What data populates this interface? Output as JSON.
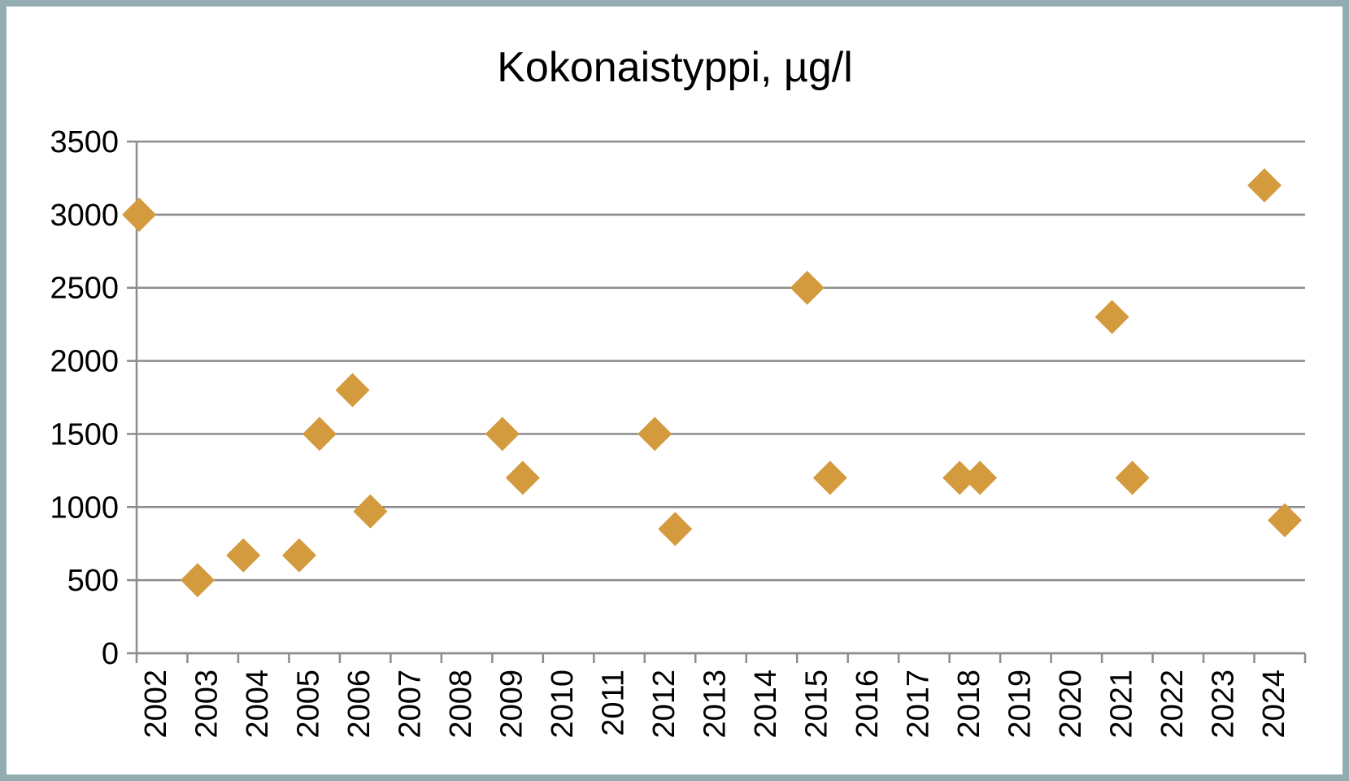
{
  "chart_data": {
    "type": "scatter",
    "title": "Kokonaistyppi, µg/l",
    "xlabel": "",
    "ylabel": "",
    "x_ticks": [
      "2002",
      "2003",
      "2004",
      "2005",
      "2006",
      "2007",
      "2008",
      "2009",
      "2010",
      "2011",
      "2012",
      "2013",
      "2014",
      "2015",
      "2016",
      "2017",
      "2018",
      "2019",
      "2020",
      "2021",
      "2022",
      "2023",
      "2024"
    ],
    "y_ticks": [
      0,
      500,
      1000,
      1500,
      2000,
      2500,
      3000,
      3500
    ],
    "xlim": [
      2002,
      2025
    ],
    "ylim": [
      0,
      3500
    ],
    "grid": "horizontal",
    "legend": "none",
    "marker": "diamond",
    "marker_color": "#d39a3e",
    "gridline_color": "#8c8c8c",
    "frame_color": "#93adb3",
    "points": [
      {
        "x": 2002.05,
        "y": 3000
      },
      {
        "x": 2003.2,
        "y": 500
      },
      {
        "x": 2004.1,
        "y": 670
      },
      {
        "x": 2005.2,
        "y": 670
      },
      {
        "x": 2005.6,
        "y": 1500
      },
      {
        "x": 2006.25,
        "y": 1800
      },
      {
        "x": 2006.6,
        "y": 970
      },
      {
        "x": 2009.2,
        "y": 1500
      },
      {
        "x": 2009.6,
        "y": 1200
      },
      {
        "x": 2012.2,
        "y": 1500
      },
      {
        "x": 2012.6,
        "y": 850
      },
      {
        "x": 2015.2,
        "y": 2500
      },
      {
        "x": 2015.65,
        "y": 1200
      },
      {
        "x": 2018.2,
        "y": 1200
      },
      {
        "x": 2018.6,
        "y": 1200
      },
      {
        "x": 2021.2,
        "y": 2300
      },
      {
        "x": 2021.6,
        "y": 1200
      },
      {
        "x": 2024.2,
        "y": 3200
      },
      {
        "x": 2024.6,
        "y": 910
      }
    ]
  }
}
